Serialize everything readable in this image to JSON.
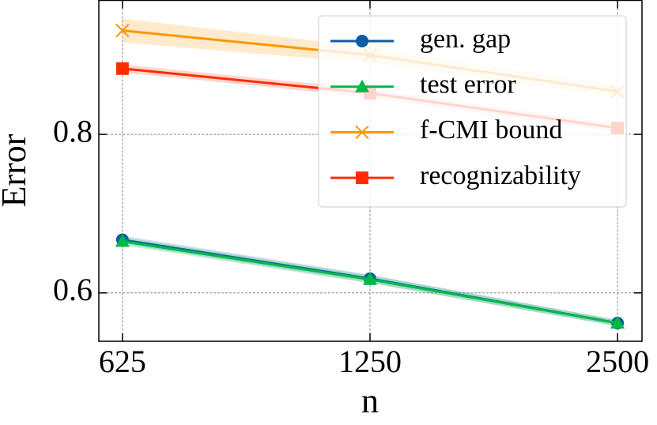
{
  "chart_data": {
    "type": "line",
    "x_label": "n",
    "y_label": "Error",
    "x": [
      625,
      1250,
      2500
    ],
    "xlim": [
      585,
      2677
    ],
    "xticks": [
      625,
      1250,
      2500
    ],
    "x_log": true,
    "ylim": [
      0.539,
      0.969
    ],
    "yticks": [
      0.6,
      0.8
    ],
    "grid": true,
    "legend": "upper right",
    "series": [
      {
        "name": "gen. gap",
        "color": "#0C5DA5",
        "marker": "circle",
        "values": [
          0.667,
          0.618,
          0.562
        ],
        "std": [
          0.005,
          0.005,
          0.004
        ]
      },
      {
        "name": "test error",
        "color": "#00B945",
        "marker": "triangle",
        "values": [
          0.665,
          0.617,
          0.562
        ],
        "std": [
          0.005,
          0.005,
          0.004
        ]
      },
      {
        "name": "f-CMI bound",
        "color": "#FF9500",
        "marker": "x",
        "values": [
          0.931,
          0.9,
          0.854
        ],
        "std": [
          0.015,
          0.01,
          0.007
        ]
      },
      {
        "name": "recognizability",
        "color": "#FF2C00",
        "marker": "square",
        "values": [
          0.883,
          0.852,
          0.808
        ],
        "std": [
          0.005,
          0.005,
          0.005
        ]
      }
    ]
  }
}
